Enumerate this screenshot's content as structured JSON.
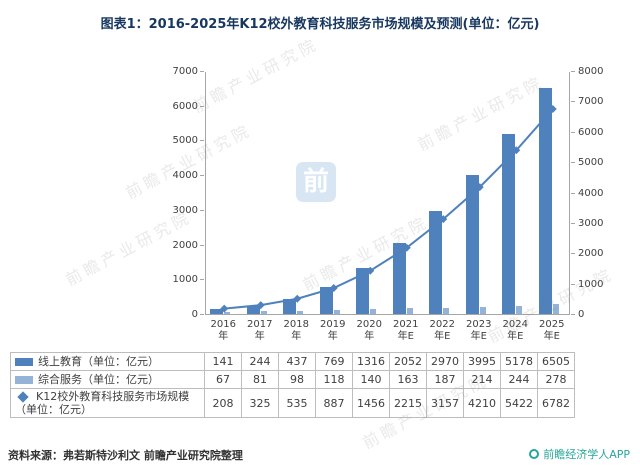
{
  "title": "图表1：2016-2025年K12校外教育科技服务市场规模及预测(单位：亿元)",
  "chart_data": {
    "type": "bar+line",
    "categories": [
      "2016年",
      "2017年",
      "2018年",
      "2019年",
      "2020年",
      "2021年E",
      "2022年E",
      "2023年E",
      "2024年E",
      "2025年E"
    ],
    "series": [
      {
        "name": "线上教育（单位：亿元）",
        "type": "bar",
        "axis": "left",
        "color": "#4f81bd",
        "values": [
          141,
          244,
          437,
          769,
          1316,
          2052,
          2970,
          3995,
          5178,
          6505
        ]
      },
      {
        "name": "综合服务（单位：亿元）",
        "type": "bar",
        "axis": "left",
        "color": "#95b3d7",
        "values": [
          67,
          81,
          98,
          118,
          140,
          163,
          187,
          214,
          244,
          278
        ]
      },
      {
        "name": "K12校外教育科技服务市场规模（单位：亿元）",
        "type": "line",
        "axis": "right",
        "color": "#4f81bd",
        "values": [
          208,
          325,
          535,
          887,
          1456,
          2215,
          3157,
          4210,
          5422,
          6782
        ]
      }
    ],
    "left_axis": {
      "min": 0,
      "max": 7000,
      "step": 1000
    },
    "right_axis": {
      "min": 0,
      "max": 8000,
      "step": 1000
    },
    "grid": false,
    "legend_position": "table-below"
  },
  "footer": {
    "source": "资料来源：弗若斯特沙利文 前瞻产业研究院整理",
    "brand": "前瞻经济学人APP"
  },
  "watermark": {
    "text": "前瞻产业研究院",
    "logo_char": "前"
  }
}
